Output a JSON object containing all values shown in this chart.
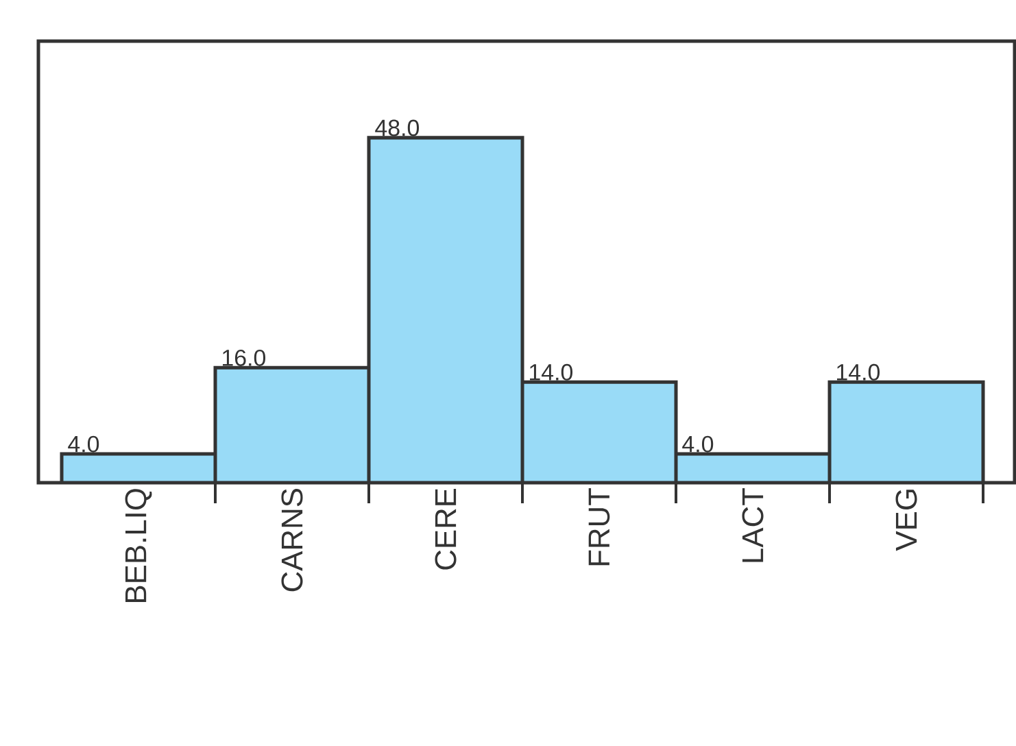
{
  "chart_data": {
    "type": "bar",
    "categories": [
      "BEB.LIQ",
      "CARNS",
      "CERE",
      "FRUT",
      "LACT",
      "VEG"
    ],
    "values": [
      4.0,
      16.0,
      48.0,
      14.0,
      4.0,
      14.0
    ],
    "value_labels": [
      "4.0",
      "16.0",
      "48.0",
      "14.0",
      "4.0",
      "14.0"
    ],
    "color": "#99dbf7"
  }
}
